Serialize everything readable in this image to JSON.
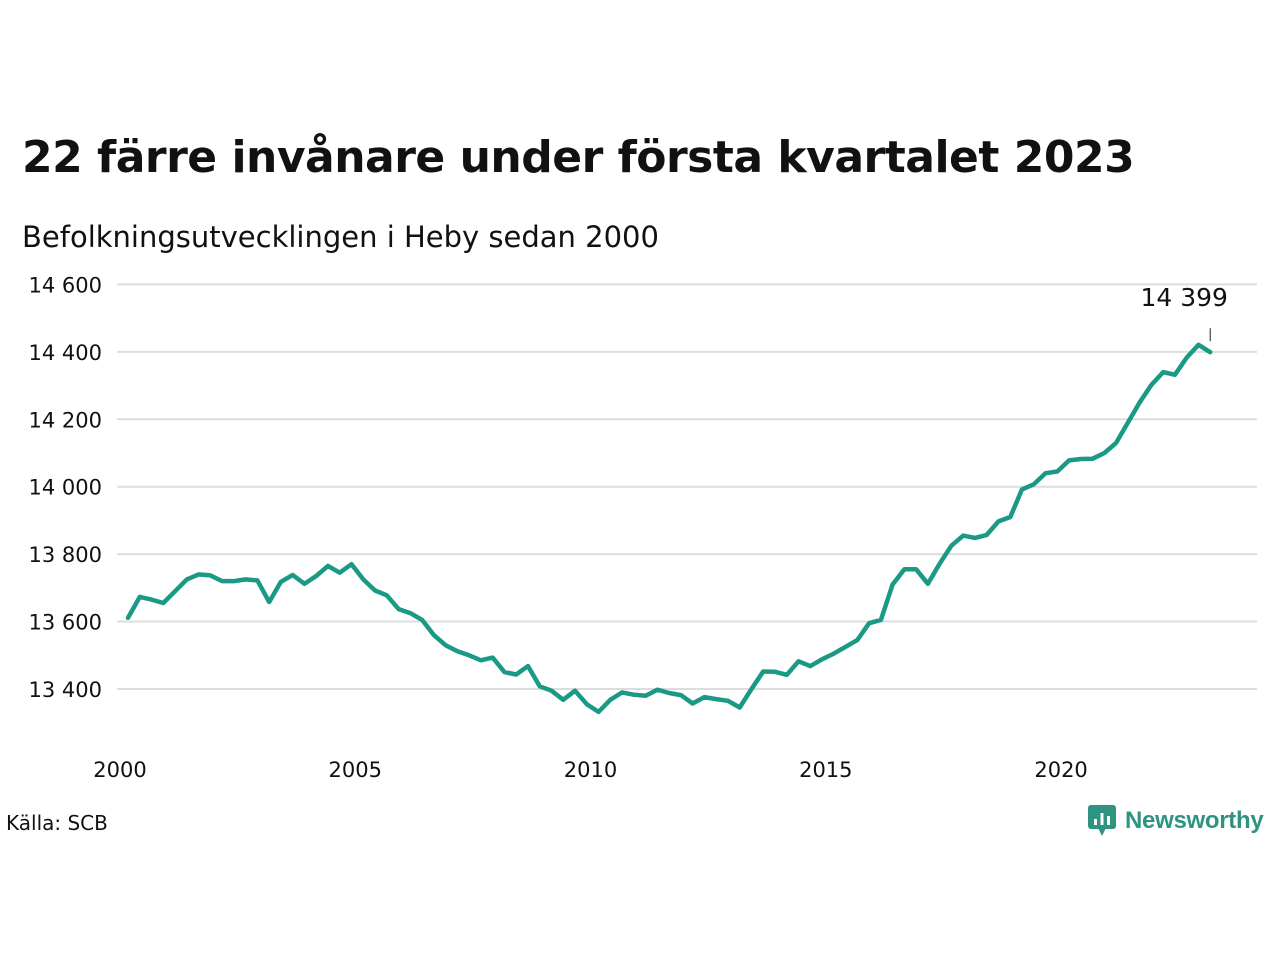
{
  "header": {
    "title": "22 färre invånare under första kvartalet 2023",
    "subtitle": "Befolkningsutvecklingen i Heby sedan 2000"
  },
  "footer": {
    "source": "Källa: SCB",
    "brand": "Newsworthy",
    "brand_icon": "newsworthy-logo-icon"
  },
  "colors": {
    "line": "#1a9985",
    "grid": "#dddddd",
    "brand": "#2e9481"
  },
  "chart_data": {
    "type": "line",
    "title": "22 färre invånare under första kvartalet 2023",
    "subtitle": "Befolkningsutvecklingen i Heby sedan 2000",
    "x_ticks": [
      2000,
      2005,
      2010,
      2015,
      2020
    ],
    "y_ticks": [
      13400,
      13600,
      13800,
      14000,
      14200,
      14400,
      14600
    ],
    "y_tick_labels": [
      "13 400",
      "13 600",
      "13 800",
      "14 000",
      "14 200",
      "14 400",
      "14 600"
    ],
    "xlim": [
      2000,
      2023.25
    ],
    "ylim": [
      13300,
      14600
    ],
    "grid": "horizontal",
    "annotation": {
      "x": 2023.0,
      "y": 14399,
      "label": "14 399"
    },
    "series": [
      {
        "x": [
          2000.0,
          2000.25,
          2000.5,
          2000.75,
          2001.0,
          2001.25,
          2001.5,
          2001.75,
          2002.0,
          2002.25,
          2002.5,
          2002.75,
          2003.0,
          2003.25,
          2003.5,
          2003.75,
          2004.0,
          2004.25,
          2004.5,
          2004.75,
          2005.0,
          2005.25,
          2005.5,
          2005.75,
          2006.0,
          2006.25,
          2006.5,
          2006.75,
          2007.0,
          2007.25,
          2007.5,
          2007.75,
          2008.0,
          2008.25,
          2008.5,
          2008.75,
          2009.0,
          2009.25,
          2009.5,
          2009.75,
          2010.0,
          2010.25,
          2010.5,
          2010.75,
          2011.0,
          2011.25,
          2011.5,
          2011.75,
          2012.0,
          2012.25,
          2012.5,
          2012.75,
          2013.0,
          2013.25,
          2013.5,
          2013.75,
          2014.0,
          2014.25,
          2014.5,
          2014.75,
          2015.0,
          2015.25,
          2015.5,
          2015.75,
          2016.0,
          2016.25,
          2016.5,
          2016.75,
          2017.0,
          2017.25,
          2017.5,
          2017.75,
          2018.0,
          2018.25,
          2018.5,
          2018.75,
          2019.0,
          2019.25,
          2019.5,
          2019.75,
          2020.0,
          2020.25,
          2020.5,
          2020.75,
          2021.0,
          2021.25,
          2021.5,
          2021.75,
          2022.0,
          2022.25,
          2022.5,
          2022.75,
          2023.0
        ],
        "values": [
          13611,
          13673,
          13665,
          13655,
          13690,
          13725,
          13740,
          13737,
          13720,
          13720,
          13725,
          13722,
          13658,
          13718,
          13738,
          13712,
          13735,
          13765,
          13745,
          13770,
          13725,
          13692,
          13678,
          13637,
          13625,
          13605,
          13560,
          13530,
          13512,
          13500,
          13485,
          13493,
          13450,
          13443,
          13468,
          13408,
          13395,
          13368,
          13395,
          13355,
          13332,
          13368,
          13390,
          13383,
          13380,
          13398,
          13388,
          13382,
          13357,
          13376,
          13370,
          13365,
          13345,
          13400,
          13452,
          13451,
          13442,
          13482,
          13468,
          13488,
          13505,
          13525,
          13545,
          13595,
          13605,
          13710,
          13755,
          13755,
          13712,
          13772,
          13825,
          13855,
          13848,
          13857,
          13897,
          13910,
          13992,
          14007,
          14040,
          14045,
          14078,
          14082,
          14083,
          14100,
          14130,
          14190,
          14250,
          14302,
          14340,
          14332,
          14383,
          14421,
          14399
        ]
      }
    ]
  }
}
